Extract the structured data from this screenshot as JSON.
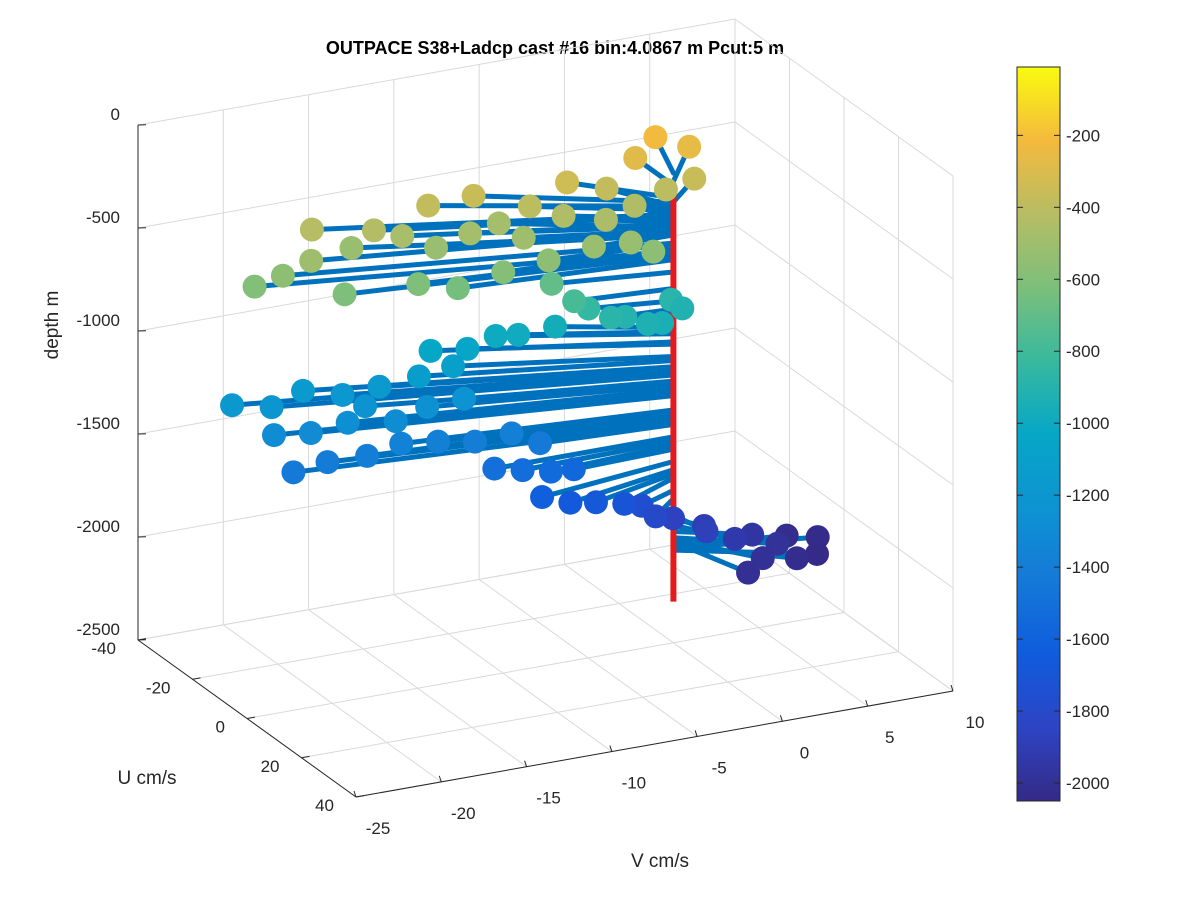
{
  "chart_data": {
    "type": "scatter3d",
    "title": "OUTPACE S38+Ladcp cast #16 bin:4.0867 m  Pcut:5 m",
    "xlabel": "V cm/s",
    "ylabel": "U cm/s",
    "zlabel": "depth m",
    "xlim": [
      -25,
      10
    ],
    "ylim": [
      -40,
      40
    ],
    "zlim": [
      -2500,
      0
    ],
    "xticks": [
      "-25",
      "-20",
      "-15",
      "-10",
      "-5",
      "0",
      "5",
      "10"
    ],
    "yticks": [
      "-40",
      "-20",
      "0",
      "20",
      "40"
    ],
    "zticks": [
      "0",
      "-500",
      "-1000",
      "-1500",
      "-2000",
      "-2500"
    ],
    "grid": true,
    "colormap": "parula",
    "colorbar": {
      "range": [
        -2050,
        -10
      ],
      "ticks": [
        "-200",
        "-400",
        "-600",
        "-800",
        "-1000",
        "-1200",
        "-1400",
        "-1600",
        "-1800",
        "-2000"
      ]
    },
    "profile_color": "#e41a1c",
    "stem_color": "#0072bd",
    "profile_depth_range": [
      -2300,
      -270
    ],
    "points": [
      {
        "v": -22,
        "u": -16,
        "depth": -600
      },
      {
        "v": -20.5,
        "u": -15,
        "depth": -560
      },
      {
        "v": -19,
        "u": -14,
        "depth": -500
      },
      {
        "v": -18,
        "u": -20,
        "depth": -420
      },
      {
        "v": -16,
        "u": -18,
        "depth": -520
      },
      {
        "v": -15,
        "u": -16,
        "depth": -430
      },
      {
        "v": -13.5,
        "u": -15,
        "depth": -470
      },
      {
        "v": -12,
        "u": -12,
        "depth": -520
      },
      {
        "v": -11.5,
        "u": -18,
        "depth": -380
      },
      {
        "v": -10,
        "u": -12,
        "depth": -480
      },
      {
        "v": -9,
        "u": -17,
        "depth": -360
      },
      {
        "v": -8,
        "u": -14,
        "depth": -480
      },
      {
        "v": -7.5,
        "u": -8,
        "depth": -500
      },
      {
        "v": -6.5,
        "u": -12,
        "depth": -400
      },
      {
        "v": -5,
        "u": -9,
        "depth": -440
      },
      {
        "v": -4,
        "u": -14,
        "depth": -340
      },
      {
        "v": -3,
        "u": -6,
        "depth": -460
      },
      {
        "v": -2,
        "u": -12,
        "depth": -380
      },
      {
        "v": -1,
        "u": -8,
        "depth": -440
      },
      {
        "v": 0,
        "u": -14,
        "depth": -280
      },
      {
        "v": 1,
        "u": -9,
        "depth": -400
      },
      {
        "v": 1.5,
        "u": -16,
        "depth": -220
      },
      {
        "v": 2.5,
        "u": -8,
        "depth": -360
      },
      {
        "v": 3,
        "u": -13,
        "depth": -260
      },
      {
        "v": -18,
        "u": -8,
        "depth": -620
      },
      {
        "v": -14,
        "u": -6,
        "depth": -610
      },
      {
        "v": -12,
        "u": -4,
        "depth": -640
      },
      {
        "v": -9.5,
        "u": -3,
        "depth": -590
      },
      {
        "v": -7,
        "u": -2,
        "depth": -560
      },
      {
        "v": -4.5,
        "u": -1,
        "depth": -520
      },
      {
        "v": -2.5,
        "u": 0,
        "depth": -520
      },
      {
        "v": -1.5,
        "u": 2,
        "depth": -560
      },
      {
        "v": -6.5,
        "u": -4,
        "depth": -700
      },
      {
        "v": -5.5,
        "u": -2,
        "depth": -780
      },
      {
        "v": -4.5,
        "u": -3,
        "depth": -840
      },
      {
        "v": -3.5,
        "u": -1,
        "depth": -880
      },
      {
        "v": -2.5,
        "u": -2,
        "depth": -900
      },
      {
        "v": -1.5,
        "u": 0,
        "depth": -930
      },
      {
        "v": -0.5,
        "u": -1,
        "depth": -950
      },
      {
        "v": 0.5,
        "u": -4,
        "depth": -880
      },
      {
        "v": 1,
        "u": -3,
        "depth": -920
      },
      {
        "v": -8.5,
        "u": -12,
        "depth": -1000
      },
      {
        "v": -7.5,
        "u": -10,
        "depth": -990
      },
      {
        "v": -5.5,
        "u": -9,
        "depth": -970
      },
      {
        "v": -12,
        "u": -14,
        "depth": -1040
      },
      {
        "v": -10,
        "u": -13,
        "depth": -1050
      },
      {
        "v": -23,
        "u": -18,
        "depth": -1180
      },
      {
        "v": -21,
        "u": -16,
        "depth": -1200
      },
      {
        "v": -19,
        "u": -17,
        "depth": -1160
      },
      {
        "v": -17,
        "u": -15,
        "depth": -1190
      },
      {
        "v": -15,
        "u": -14,
        "depth": -1170
      },
      {
        "v": -13,
        "u": -12,
        "depth": -1130
      },
      {
        "v": -11,
        "u": -12,
        "depth": -1110
      },
      {
        "v": -21.5,
        "u": -12,
        "depth": -1290
      },
      {
        "v": -19.5,
        "u": -11,
        "depth": -1300
      },
      {
        "v": -17.5,
        "u": -10,
        "depth": -1270
      },
      {
        "v": -15,
        "u": -8,
        "depth": -1280
      },
      {
        "v": -13,
        "u": -9,
        "depth": -1250
      },
      {
        "v": -11,
        "u": -8,
        "depth": -1230
      },
      {
        "v": -16,
        "u": -13,
        "depth": -1240
      },
      {
        "v": -21,
        "u": -8,
        "depth": -1440
      },
      {
        "v": -19,
        "u": -8,
        "depth": -1420
      },
      {
        "v": -17,
        "u": -6,
        "depth": -1400
      },
      {
        "v": -15,
        "u": -6,
        "depth": -1370
      },
      {
        "v": -13,
        "u": -5,
        "depth": -1380
      },
      {
        "v": -11,
        "u": -4,
        "depth": -1400
      },
      {
        "v": -9,
        "u": -3,
        "depth": -1380
      },
      {
        "v": -7.5,
        "u": -2,
        "depth": -1440
      },
      {
        "v": -10.5,
        "u": 0,
        "depth": -1500
      },
      {
        "v": -9,
        "u": 1,
        "depth": -1520
      },
      {
        "v": -7.5,
        "u": 2,
        "depth": -1540
      },
      {
        "v": -6,
        "u": 1,
        "depth": -1560
      },
      {
        "v": -8.5,
        "u": 5,
        "depth": -1620
      },
      {
        "v": -7,
        "u": 6,
        "depth": -1660
      },
      {
        "v": -5.5,
        "u": 6,
        "depth": -1680
      },
      {
        "v": -4,
        "u": 7,
        "depth": -1700
      },
      {
        "v": -2.5,
        "u": 4,
        "depth": -1760
      },
      {
        "v": -2,
        "u": 6,
        "depth": -1800
      },
      {
        "v": -0.5,
        "u": 3,
        "depth": -1860
      },
      {
        "v": 1,
        "u": 5,
        "depth": -1900
      },
      {
        "v": 0.5,
        "u": 9,
        "depth": -1880
      },
      {
        "v": 2,
        "u": 10,
        "depth": -1930
      },
      {
        "v": 3.5,
        "u": 7,
        "depth": -1960
      },
      {
        "v": 4.5,
        "u": 10,
        "depth": -1990
      },
      {
        "v": 6,
        "u": 4,
        "depth": -2030
      },
      {
        "v": 7.5,
        "u": 6,
        "depth": -2040
      },
      {
        "v": 3,
        "u": 14,
        "depth": -2000
      },
      {
        "v": 5,
        "u": 14,
        "depth": -2030
      },
      {
        "v": 6.5,
        "u": 12,
        "depth": -2050
      },
      {
        "v": 1.5,
        "u": 18,
        "depth": -2010
      }
    ]
  }
}
